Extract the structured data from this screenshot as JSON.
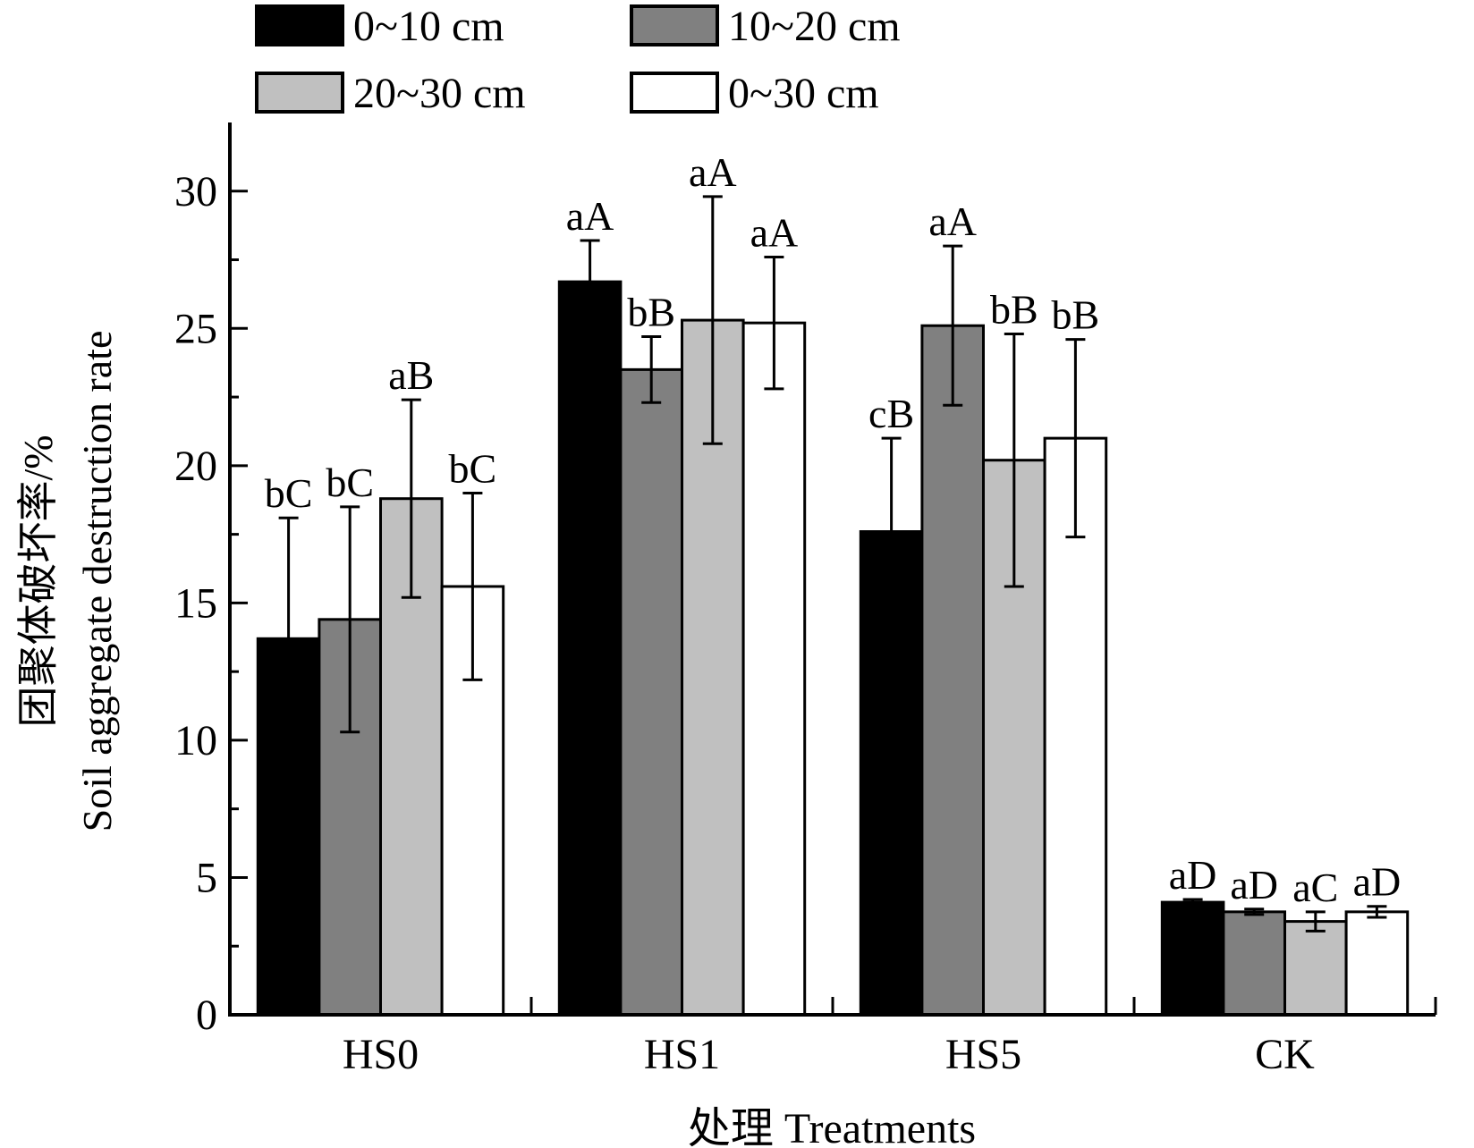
{
  "chart_data": {
    "type": "bar",
    "title": "",
    "xlabel": "处理 Treatments",
    "ylabel_cn": "团聚体破坏率/%",
    "ylabel_en": "Soil aggregate destruction rate",
    "ylim": [
      0,
      32.5
    ],
    "yticks": [
      0,
      5,
      10,
      15,
      20,
      25,
      30
    ],
    "categories": [
      "HS0",
      "HS1",
      "HS5",
      "CK"
    ],
    "legend_position": "top",
    "series": [
      {
        "name": "0~10 cm",
        "color": "#000000",
        "values": [
          13.7,
          26.7,
          17.6,
          4.1
        ],
        "errors": [
          4.4,
          1.5,
          3.4,
          0.1
        ],
        "letters": [
          "bC",
          "aA",
          "cB",
          "aD"
        ]
      },
      {
        "name": "10~20 cm",
        "color": "#808080",
        "values": [
          14.4,
          23.5,
          25.1,
          3.75
        ],
        "errors": [
          4.1,
          1.2,
          2.9,
          0.1
        ],
        "letters": [
          "bC",
          "bB",
          "aA",
          "aD"
        ]
      },
      {
        "name": "20~30 cm",
        "color": "#c0c0c0",
        "values": [
          18.8,
          25.3,
          20.2,
          3.4
        ],
        "errors": [
          3.6,
          4.5,
          4.6,
          0.35
        ],
        "letters": [
          "aB",
          "aA",
          "bB",
          "aC"
        ]
      },
      {
        "name": "0~30 cm",
        "color": "#ffffff",
        "values": [
          15.6,
          25.2,
          21.0,
          3.75
        ],
        "errors": [
          3.4,
          2.4,
          3.6,
          0.2
        ],
        "letters": [
          "bC",
          "aA",
          "bB",
          "aD"
        ]
      }
    ]
  }
}
